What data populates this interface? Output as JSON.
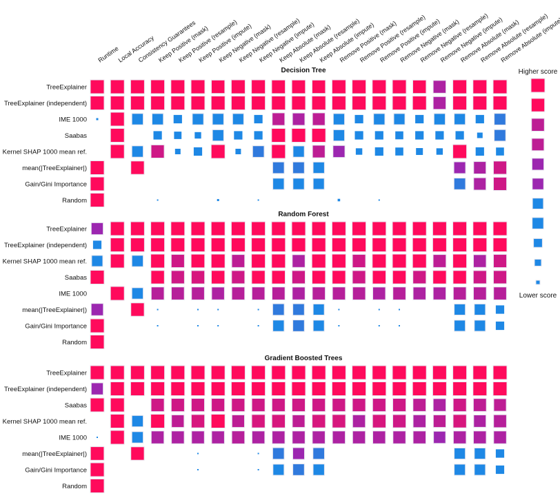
{
  "chart_data": {
    "type": "heatmap",
    "encoding": "square size and color both encode score; color scale from blue (lower score) through purple to pink-red (higher score)",
    "color_scale": {
      "low": "#1e88e5",
      "mid": "#9c27b0",
      "high": "#ff0a5c"
    },
    "columns": [
      "Runtime",
      "Local Accuracy",
      "Consistency Guarantees",
      "Keep Positive (mask)",
      "Keep Positive (resample)",
      "Keep Positive (impute)",
      "Keep Negative (mask)",
      "Keep Negative (resample)",
      "Keep Negative (impute)",
      "Keep Absolute (mask)",
      "Keep Absolute (resample)",
      "Keep Absolute (impute)",
      "Remove Positive (mask)",
      "Remove Positive (resample)",
      "Remove Positive (impute)",
      "Remove Negative (mask)",
      "Remove Negative (resample)",
      "Remove Negative (impute)",
      "Remove Absolute (mask)",
      "Remove Absolute (resample)",
      "Remove Absolute (impute)"
    ],
    "legend": {
      "top": "Higher score",
      "bottom": "Lower score",
      "levels": [
        1.0,
        0.9,
        0.8,
        0.7,
        0.6,
        0.5,
        0.4,
        0.3,
        0.2,
        0.1,
        0.0
      ]
    },
    "panels": [
      {
        "title": "Decision Tree",
        "rows": [
          {
            "label": "TreeExplainer",
            "values": [
              1,
              1,
              1,
              1,
              1,
              1,
              0.9,
              1,
              1,
              0.95,
              0.95,
              0.9,
              1,
              1,
              1,
              1,
              0.9,
              0.75,
              1,
              1,
              1
            ]
          },
          {
            "label": "TreeExplainer (independent)",
            "values": [
              1,
              1,
              1,
              1,
              1,
              1,
              1,
              1,
              1,
              1,
              1,
              1,
              1,
              1,
              1,
              1,
              1,
              0.75,
              1,
              1,
              1
            ]
          },
          {
            "label": "IME 1000",
            "values": [
              0.05,
              1,
              0.4,
              0.38,
              0.3,
              0.38,
              0.4,
              0.35,
              0.3,
              0.7,
              0.65,
              0.7,
              0.38,
              0.3,
              0.38,
              0.35,
              0.3,
              0.38,
              0.35,
              0.3,
              0.45
            ]
          },
          {
            "label": "Saabas",
            "values": [
              null,
              1,
              null,
              0.3,
              0.25,
              0.2,
              0.38,
              0.3,
              0.3,
              1,
              1,
              1,
              0.38,
              0.3,
              0.3,
              0.28,
              0.3,
              0.3,
              0.3,
              0.15,
              0.45
            ]
          },
          {
            "label": "Kernel SHAP 1000 mean ref.",
            "values": [
              null,
              1,
              0.4,
              0.85,
              0.15,
              0.3,
              1,
              0.15,
              0.45,
              1,
              0.38,
              0.7,
              0.55,
              0.2,
              0.3,
              0.28,
              0.22,
              0.2,
              1,
              0.3,
              0.28
            ]
          },
          {
            "label": "mean(|TreeExplainer|)",
            "values": [
              1,
              null,
              0.9,
              null,
              null,
              null,
              null,
              null,
              null,
              0.45,
              0.45,
              0.4,
              null,
              null,
              null,
              null,
              null,
              null,
              0.5,
              0.65,
              0.85
            ]
          },
          {
            "label": "Gain/Gini Importance",
            "values": [
              1,
              null,
              null,
              null,
              null,
              null,
              null,
              null,
              null,
              0.4,
              0.4,
              0.35,
              null,
              null,
              null,
              null,
              null,
              null,
              0.45,
              0.65,
              0.85
            ]
          },
          {
            "label": "Random",
            "values": [
              1,
              null,
              null,
              0.03,
              null,
              null,
              0.05,
              null,
              0.03,
              null,
              null,
              null,
              0.06,
              null,
              0.03,
              null,
              null,
              null,
              null,
              null,
              null
            ]
          }
        ]
      },
      {
        "title": "Random Forest",
        "rows": [
          {
            "label": "TreeExplainer",
            "values": [
              0.55,
              1,
              1,
              1,
              1,
              1,
              1,
              1,
              1,
              1,
              1,
              1,
              1,
              1,
              1,
              1,
              1,
              1,
              1,
              1,
              1
            ]
          },
          {
            "label": "TreeExplainer (independent)",
            "values": [
              0.3,
              1,
              1,
              1,
              1,
              1,
              1,
              1,
              1,
              1,
              1,
              1,
              1,
              1,
              1,
              1,
              1,
              1,
              1,
              1,
              1
            ]
          },
          {
            "label": "Kernel SHAP 1000 mean ref.",
            "values": [
              0.35,
              1,
              0.4,
              1,
              0.85,
              0.95,
              1,
              0.8,
              1,
              1,
              0.75,
              1,
              1,
              0.85,
              1,
              1,
              1,
              0.8,
              1,
              0.75,
              0.85
            ]
          },
          {
            "label": "Saabas",
            "values": [
              1,
              null,
              null,
              0.9,
              0.85,
              0.88,
              0.9,
              0.85,
              0.9,
              0.9,
              0.85,
              0.9,
              0.9,
              0.85,
              0.9,
              0.9,
              0.85,
              0.9,
              0.9,
              0.85,
              0.85
            ]
          },
          {
            "label": "IME 1000",
            "values": [
              null,
              1,
              0.4,
              0.78,
              0.78,
              0.78,
              0.75,
              0.78,
              0.78,
              0.78,
              0.75,
              0.78,
              0.78,
              0.78,
              0.75,
              0.78,
              0.75,
              0.75,
              0.78,
              0.78,
              0.78
            ]
          },
          {
            "label": "mean(|TreeExplainer|)",
            "values": [
              0.6,
              null,
              0.9,
              0.02,
              null,
              0.01,
              0.02,
              null,
              0.02,
              0.45,
              0.45,
              0.35,
              0.02,
              null,
              0.02,
              0.01,
              null,
              null,
              0.35,
              0.35,
              0.3
            ]
          },
          {
            "label": "Gain/Gini Importance",
            "values": [
              1,
              null,
              null,
              0.02,
              null,
              0.01,
              0.02,
              null,
              0.02,
              0.4,
              0.45,
              0.35,
              0.02,
              null,
              0.02,
              0.01,
              null,
              null,
              0.35,
              0.35,
              0.3
            ]
          },
          {
            "label": "Random",
            "values": [
              1,
              null,
              null,
              null,
              null,
              null,
              null,
              null,
              null,
              null,
              null,
              null,
              null,
              null,
              null,
              null,
              null,
              null,
              null,
              null,
              null
            ]
          }
        ]
      },
      {
        "title": "Gradient Boosted Trees",
        "rows": [
          {
            "label": "TreeExplainer",
            "values": [
              1,
              1,
              1,
              1,
              1,
              1,
              1,
              1,
              1,
              1,
              1,
              1,
              1,
              1,
              1,
              1,
              1,
              1,
              1,
              1,
              1
            ]
          },
          {
            "label": "TreeExplainer (independent)",
            "values": [
              0.55,
              1,
              1,
              1,
              1,
              1,
              1,
              1,
              1,
              1,
              1,
              1,
              1,
              1,
              1,
              1,
              1,
              1,
              1,
              1,
              1
            ]
          },
          {
            "label": "Saabas",
            "values": [
              1,
              1,
              null,
              0.85,
              0.85,
              0.85,
              0.85,
              0.85,
              0.85,
              0.85,
              0.85,
              0.85,
              0.85,
              0.85,
              0.85,
              0.85,
              0.8,
              0.75,
              0.85,
              0.8,
              0.7
            ]
          },
          {
            "label": "Kernel SHAP 1000 mean ref.",
            "values": [
              null,
              1,
              0.4,
              1,
              0.7,
              0.88,
              1,
              0.7,
              0.88,
              0.88,
              0.7,
              0.88,
              0.88,
              0.75,
              0.88,
              0.85,
              0.75,
              0.7,
              0.88,
              0.65,
              0.78
            ]
          },
          {
            "label": "IME 1000",
            "values": [
              0.03,
              1,
              0.4,
              0.75,
              0.75,
              0.75,
              0.75,
              0.78,
              0.75,
              0.75,
              0.75,
              0.75,
              0.75,
              0.75,
              0.75,
              0.75,
              0.75,
              0.6,
              0.75,
              0.75,
              0.75
            ]
          },
          {
            "label": "mean(|TreeExplainer|)",
            "values": [
              0.95,
              null,
              0.9,
              null,
              null,
              0.01,
              null,
              null,
              0.01,
              0.45,
              0.5,
              0.45,
              null,
              null,
              null,
              null,
              null,
              null,
              0.35,
              0.35,
              0.3
            ]
          },
          {
            "label": "Gain/Gini Importance",
            "values": [
              1,
              null,
              null,
              null,
              null,
              0.01,
              null,
              null,
              0.01,
              0.35,
              0.45,
              0.4,
              null,
              null,
              null,
              null,
              null,
              null,
              0.35,
              0.35,
              0.3
            ]
          },
          {
            "label": "Random",
            "values": [
              1,
              null,
              null,
              null,
              null,
              null,
              null,
              null,
              null,
              null,
              null,
              null,
              null,
              null,
              null,
              null,
              null,
              null,
              null,
              null,
              null
            ]
          }
        ]
      }
    ]
  }
}
